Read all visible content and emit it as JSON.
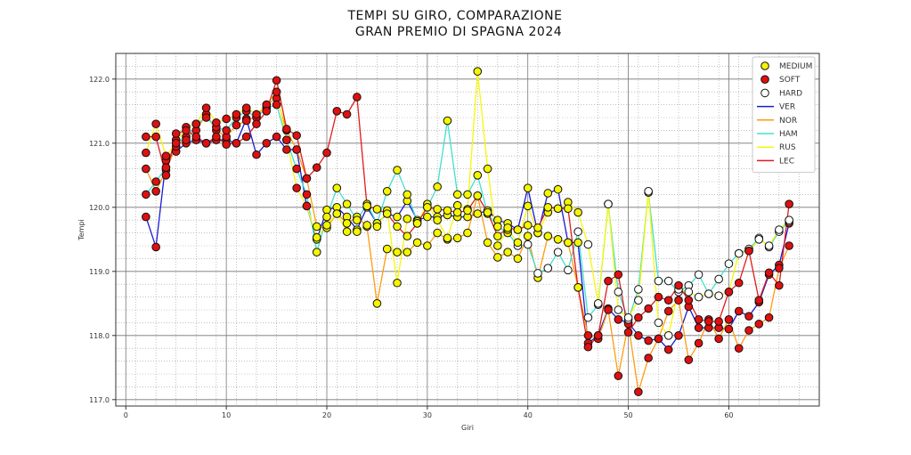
{
  "chart_data": {
    "type": "line",
    "title": "TEMPI SU GIRO, COMPARAZIONE",
    "subtitle": "GRAN PREMIO DI SPAGNA 2024",
    "xlabel": "Giri",
    "ylabel": "Tempi",
    "xlim": [
      -1,
      69
    ],
    "ylim": [
      116.9,
      122.4
    ],
    "xticks": [
      0,
      10,
      20,
      30,
      40,
      50,
      60
    ],
    "yticks": [
      117.0,
      118.0,
      119.0,
      120.0,
      121.0,
      122.0
    ],
    "grid": true,
    "legend_position": "top-right",
    "compound_legend": [
      {
        "name": "MEDIUM",
        "color": "#f5f500"
      },
      {
        "name": "SOFT",
        "color": "#e01010"
      },
      {
        "name": "HARD",
        "color": "#ffffff"
      }
    ],
    "series": [
      {
        "name": "VER",
        "color": "#1a1ad6",
        "x": [
          2,
          3,
          4,
          5,
          6,
          7,
          8,
          9,
          10,
          11,
          12,
          13,
          14,
          15,
          16,
          17,
          18,
          19,
          20,
          21,
          22,
          23,
          24,
          25,
          26,
          27,
          28,
          29,
          30,
          31,
          32,
          33,
          34,
          35,
          36,
          37,
          38,
          39,
          40,
          41,
          42,
          43,
          44,
          45,
          46,
          47,
          48,
          49,
          50,
          51,
          52,
          53,
          54,
          55,
          56,
          57,
          58,
          59,
          60,
          61,
          62,
          63,
          64,
          65,
          66
        ],
        "compound": [
          "SOFT",
          "SOFT",
          "SOFT",
          "SOFT",
          "SOFT",
          "SOFT",
          "SOFT",
          "SOFT",
          "SOFT",
          "SOFT",
          "SOFT",
          "SOFT",
          "SOFT",
          "SOFT",
          "SOFT",
          "SOFT",
          "MEDIUM",
          "MEDIUM",
          "MEDIUM",
          "MEDIUM",
          "MEDIUM",
          "MEDIUM",
          "MEDIUM",
          "MEDIUM",
          "MEDIUM",
          "MEDIUM",
          "MEDIUM",
          "MEDIUM",
          "MEDIUM",
          "MEDIUM",
          "MEDIUM",
          "MEDIUM",
          "MEDIUM",
          "MEDIUM",
          "MEDIUM",
          "MEDIUM",
          "MEDIUM",
          "MEDIUM",
          "MEDIUM",
          "MEDIUM",
          "MEDIUM",
          "MEDIUM",
          "MEDIUM",
          "MEDIUM",
          "SOFT",
          "SOFT",
          "SOFT",
          "SOFT",
          "SOFT",
          "SOFT",
          "SOFT",
          "SOFT",
          "SOFT",
          "SOFT",
          "SOFT",
          "SOFT",
          "SOFT",
          "SOFT",
          "SOFT",
          "SOFT",
          "SOFT",
          "SOFT",
          "SOFT",
          "SOFT",
          "SOFT"
        ],
        "values": [
          119.85,
          119.38,
          120.73,
          120.87,
          121.0,
          121.05,
          121.0,
          121.05,
          121.05,
          121.0,
          121.38,
          120.82,
          121.0,
          121.1,
          120.9,
          120.9,
          120.02,
          119.5,
          119.96,
          120.0,
          119.85,
          119.65,
          120.0,
          119.75,
          119.9,
          119.85,
          120.1,
          119.8,
          119.85,
          119.85,
          119.88,
          119.85,
          119.85,
          119.9,
          119.95,
          119.8,
          119.75,
          119.65,
          120.3,
          119.6,
          120.22,
          120.28,
          119.45,
          119.45,
          117.88,
          118.0,
          118.42,
          118.25,
          118.2,
          118.0,
          117.92,
          117.95,
          117.78,
          118.0,
          118.45,
          118.12,
          118.12,
          118.12,
          118.1,
          118.38,
          118.3,
          118.52,
          118.95,
          119.1,
          119.75
        ]
      },
      {
        "name": "NOR",
        "color": "#ff9b0f",
        "x": [
          2,
          3,
          4,
          5,
          6,
          7,
          8,
          9,
          10,
          11,
          12,
          13,
          14,
          15,
          16,
          17,
          18,
          19,
          20,
          21,
          22,
          23,
          24,
          25,
          26,
          27,
          28,
          29,
          30,
          31,
          32,
          33,
          34,
          35,
          36,
          37,
          38,
          39,
          40,
          41,
          42,
          43,
          44,
          45,
          46,
          47,
          48,
          49,
          50,
          51,
          52,
          53,
          54,
          55,
          56,
          57,
          58,
          59,
          60,
          61,
          62,
          63,
          64,
          65,
          66
        ],
        "compound": [
          "SOFT",
          "SOFT",
          "SOFT",
          "SOFT",
          "SOFT",
          "SOFT",
          "SOFT",
          "SOFT",
          "SOFT",
          "SOFT",
          "SOFT",
          "SOFT",
          "SOFT",
          "SOFT",
          "SOFT",
          "SOFT",
          "SOFT",
          "MEDIUM",
          "MEDIUM",
          "MEDIUM",
          "MEDIUM",
          "MEDIUM",
          "MEDIUM",
          "MEDIUM",
          "MEDIUM",
          "MEDIUM",
          "MEDIUM",
          "MEDIUM",
          "MEDIUM",
          "MEDIUM",
          "MEDIUM",
          "MEDIUM",
          "MEDIUM",
          "MEDIUM",
          "MEDIUM",
          "MEDIUM",
          "MEDIUM",
          "MEDIUM",
          "MEDIUM",
          "MEDIUM",
          "MEDIUM",
          "MEDIUM",
          "MEDIUM",
          "MEDIUM",
          "SOFT",
          "SOFT",
          "SOFT",
          "SOFT",
          "SOFT",
          "SOFT",
          "SOFT",
          "SOFT",
          "SOFT",
          "SOFT",
          "SOFT",
          "SOFT",
          "SOFT",
          "SOFT",
          "SOFT",
          "SOFT",
          "SOFT",
          "SOFT",
          "SOFT",
          "SOFT",
          "SOFT"
        ],
        "values": [
          120.6,
          120.25,
          120.58,
          120.95,
          121.1,
          121.2,
          121.45,
          121.2,
          121.1,
          121.28,
          121.35,
          121.42,
          121.6,
          121.7,
          121.2,
          120.9,
          120.45,
          119.7,
          119.68,
          119.9,
          119.75,
          119.85,
          119.7,
          118.5,
          119.35,
          119.3,
          119.3,
          119.45,
          119.4,
          119.6,
          119.5,
          119.52,
          119.6,
          120.18,
          119.45,
          119.22,
          119.3,
          119.2,
          119.55,
          118.9,
          119.55,
          119.5,
          119.45,
          118.75,
          118.0,
          117.95,
          118.4,
          117.37,
          118.18,
          117.12,
          117.65,
          117.95,
          118.38,
          118.55,
          117.62,
          117.88,
          118.25,
          117.95,
          118.25,
          117.8,
          118.08,
          118.18,
          118.28,
          119.05,
          119.4
        ]
      },
      {
        "name": "HAM",
        "color": "#40e0d0",
        "x": [
          2,
          3,
          4,
          5,
          6,
          7,
          8,
          9,
          10,
          11,
          12,
          13,
          14,
          15,
          16,
          17,
          18,
          19,
          20,
          21,
          22,
          23,
          24,
          25,
          26,
          27,
          28,
          29,
          30,
          31,
          32,
          33,
          34,
          35,
          36,
          37,
          38,
          39,
          40,
          41,
          42,
          43,
          44,
          45,
          46,
          47,
          48,
          49,
          50,
          51,
          52,
          53,
          54,
          55,
          56,
          57,
          58,
          59,
          60,
          61,
          62,
          63,
          64,
          65,
          66
        ],
        "compound": [
          "SOFT",
          "SOFT",
          "SOFT",
          "SOFT",
          "SOFT",
          "SOFT",
          "SOFT",
          "SOFT",
          "SOFT",
          "SOFT",
          "SOFT",
          "SOFT",
          "SOFT",
          "SOFT",
          "SOFT",
          "SOFT",
          "SOFT",
          "MEDIUM",
          "MEDIUM",
          "MEDIUM",
          "MEDIUM",
          "MEDIUM",
          "MEDIUM",
          "MEDIUM",
          "MEDIUM",
          "MEDIUM",
          "MEDIUM",
          "MEDIUM",
          "MEDIUM",
          "MEDIUM",
          "MEDIUM",
          "MEDIUM",
          "MEDIUM",
          "MEDIUM",
          "MEDIUM",
          "MEDIUM",
          "MEDIUM",
          "HARD",
          "HARD",
          "HARD",
          "HARD",
          "HARD",
          "HARD",
          "HARD",
          "HARD",
          "HARD",
          "HARD",
          "HARD",
          "HARD",
          "HARD",
          "HARD",
          "HARD",
          "HARD",
          "HARD",
          "HARD",
          "HARD",
          "HARD",
          "HARD",
          "HARD",
          "HARD",
          "HARD",
          "HARD",
          "HARD",
          "HARD",
          "HARD"
        ],
        "values": [
          120.2,
          120.4,
          120.62,
          121.05,
          121.05,
          121.3,
          121.4,
          121.25,
          121.2,
          121.4,
          121.5,
          121.4,
          121.55,
          121.6,
          121.05,
          120.6,
          120.2,
          119.3,
          119.85,
          120.3,
          120.05,
          119.8,
          120.05,
          119.75,
          120.25,
          120.58,
          120.2,
          119.78,
          120.0,
          120.32,
          121.35,
          120.2,
          120.2,
          120.5,
          119.9,
          119.7,
          119.6,
          119.4,
          119.42,
          118.97,
          119.05,
          119.3,
          119.02,
          119.62,
          118.28,
          118.48,
          120.05,
          118.68,
          118.25,
          118.72,
          120.23,
          118.85,
          118.85,
          118.68,
          118.78,
          118.95,
          118.65,
          118.88,
          119.12,
          119.28,
          119.35,
          119.52,
          119.38,
          119.62,
          119.78
        ]
      },
      {
        "name": "RUS",
        "color": "#f7f70a",
        "x": [
          2,
          3,
          4,
          5,
          6,
          7,
          8,
          9,
          10,
          11,
          12,
          13,
          14,
          15,
          16,
          17,
          18,
          19,
          20,
          21,
          22,
          23,
          24,
          25,
          26,
          27,
          28,
          29,
          30,
          31,
          32,
          33,
          34,
          35,
          36,
          37,
          38,
          39,
          40,
          41,
          42,
          43,
          44,
          45,
          46,
          47,
          48,
          49,
          50,
          51,
          52,
          53,
          54,
          55,
          56,
          57,
          58,
          59,
          60,
          61,
          62,
          63,
          64,
          65,
          66
        ],
        "compound": [
          "SOFT",
          "SOFT",
          "SOFT",
          "SOFT",
          "SOFT",
          "SOFT",
          "SOFT",
          "SOFT",
          "SOFT",
          "SOFT",
          "SOFT",
          "SOFT",
          "SOFT",
          "SOFT",
          "SOFT",
          "SOFT",
          "SOFT",
          "MEDIUM",
          "MEDIUM",
          "MEDIUM",
          "MEDIUM",
          "MEDIUM",
          "MEDIUM",
          "MEDIUM",
          "MEDIUM",
          "MEDIUM",
          "MEDIUM",
          "MEDIUM",
          "MEDIUM",
          "MEDIUM",
          "MEDIUM",
          "MEDIUM",
          "MEDIUM",
          "MEDIUM",
          "MEDIUM",
          "MEDIUM",
          "MEDIUM",
          "MEDIUM",
          "MEDIUM",
          "MEDIUM",
          "MEDIUM",
          "MEDIUM",
          "MEDIUM",
          "MEDIUM",
          "HARD",
          "HARD",
          "HARD",
          "HARD",
          "HARD",
          "HARD",
          "HARD",
          "HARD",
          "HARD",
          "HARD",
          "HARD",
          "HARD",
          "HARD",
          "HARD",
          "HARD",
          "HARD",
          "HARD",
          "HARD",
          "HARD",
          "HARD",
          "HARD"
        ],
        "values": [
          120.85,
          121.3,
          120.8,
          121.0,
          121.25,
          121.3,
          121.55,
          121.32,
          121.38,
          121.45,
          121.55,
          121.45,
          121.6,
          121.8,
          121.05,
          120.3,
          120.02,
          119.53,
          119.72,
          119.9,
          119.62,
          119.62,
          119.72,
          119.7,
          119.95,
          118.82,
          119.82,
          119.75,
          120.05,
          119.8,
          119.52,
          120.03,
          119.97,
          122.12,
          120.6,
          119.4,
          119.65,
          119.45,
          120.02,
          119.6,
          119.92,
          119.98,
          120.08,
          119.92,
          119.42,
          118.5,
          120.05,
          118.4,
          118.28,
          118.55,
          120.25,
          118.2,
          118.0,
          118.72,
          118.68,
          118.6,
          118.65,
          118.62,
          118.68,
          119.28,
          119.32,
          119.5,
          119.4,
          119.65,
          119.8
        ]
      },
      {
        "name": "LEC",
        "color": "#e01b1b",
        "x": [
          2,
          3,
          4,
          5,
          6,
          7,
          8,
          9,
          10,
          11,
          12,
          13,
          14,
          15,
          16,
          17,
          18,
          19,
          20,
          21,
          22,
          23,
          24,
          25,
          26,
          27,
          28,
          29,
          30,
          31,
          32,
          33,
          34,
          35,
          36,
          37,
          38,
          39,
          40,
          41,
          42,
          43,
          44,
          45,
          46,
          47,
          48,
          49,
          50,
          51,
          52,
          53,
          54,
          55,
          56,
          57,
          58,
          59,
          60,
          61,
          62,
          63,
          64,
          65,
          66
        ],
        "compound": [
          "SOFT",
          "SOFT",
          "SOFT",
          "SOFT",
          "SOFT",
          "SOFT",
          "SOFT",
          "SOFT",
          "SOFT",
          "SOFT",
          "SOFT",
          "SOFT",
          "SOFT",
          "SOFT",
          "SOFT",
          "SOFT",
          "SOFT",
          "SOFT",
          "SOFT",
          "SOFT",
          "SOFT",
          "SOFT",
          "MEDIUM",
          "MEDIUM",
          "MEDIUM",
          "MEDIUM",
          "MEDIUM",
          "MEDIUM",
          "MEDIUM",
          "MEDIUM",
          "MEDIUM",
          "MEDIUM",
          "MEDIUM",
          "MEDIUM",
          "MEDIUM",
          "MEDIUM",
          "MEDIUM",
          "MEDIUM",
          "MEDIUM",
          "MEDIUM",
          "MEDIUM",
          "MEDIUM",
          "MEDIUM",
          "MEDIUM",
          "SOFT",
          "SOFT",
          "SOFT",
          "SOFT",
          "SOFT",
          "SOFT",
          "SOFT",
          "SOFT",
          "SOFT",
          "SOFT",
          "SOFT",
          "SOFT",
          "SOFT",
          "SOFT",
          "SOFT",
          "SOFT",
          "SOFT",
          "SOFT",
          "SOFT",
          "SOFT",
          "SOFT"
        ],
        "values": [
          121.1,
          121.1,
          120.5,
          121.15,
          121.2,
          121.1,
          121.0,
          121.1,
          120.98,
          121.0,
          121.1,
          121.3,
          121.5,
          121.98,
          121.22,
          121.12,
          120.45,
          120.62,
          120.85,
          121.5,
          121.45,
          121.72,
          120.02,
          119.97,
          119.9,
          119.7,
          119.55,
          119.75,
          120.0,
          119.97,
          119.95,
          119.92,
          119.95,
          120.18,
          119.92,
          119.55,
          119.68,
          119.65,
          119.72,
          119.68,
          120.0,
          119.98,
          119.98,
          118.75,
          117.82,
          118.0,
          118.85,
          118.95,
          118.05,
          118.28,
          118.42,
          118.6,
          118.55,
          118.78,
          118.55,
          118.25,
          118.22,
          118.22,
          118.68,
          118.82,
          119.32,
          118.55,
          118.98,
          118.78,
          120.05
        ]
      }
    ]
  }
}
